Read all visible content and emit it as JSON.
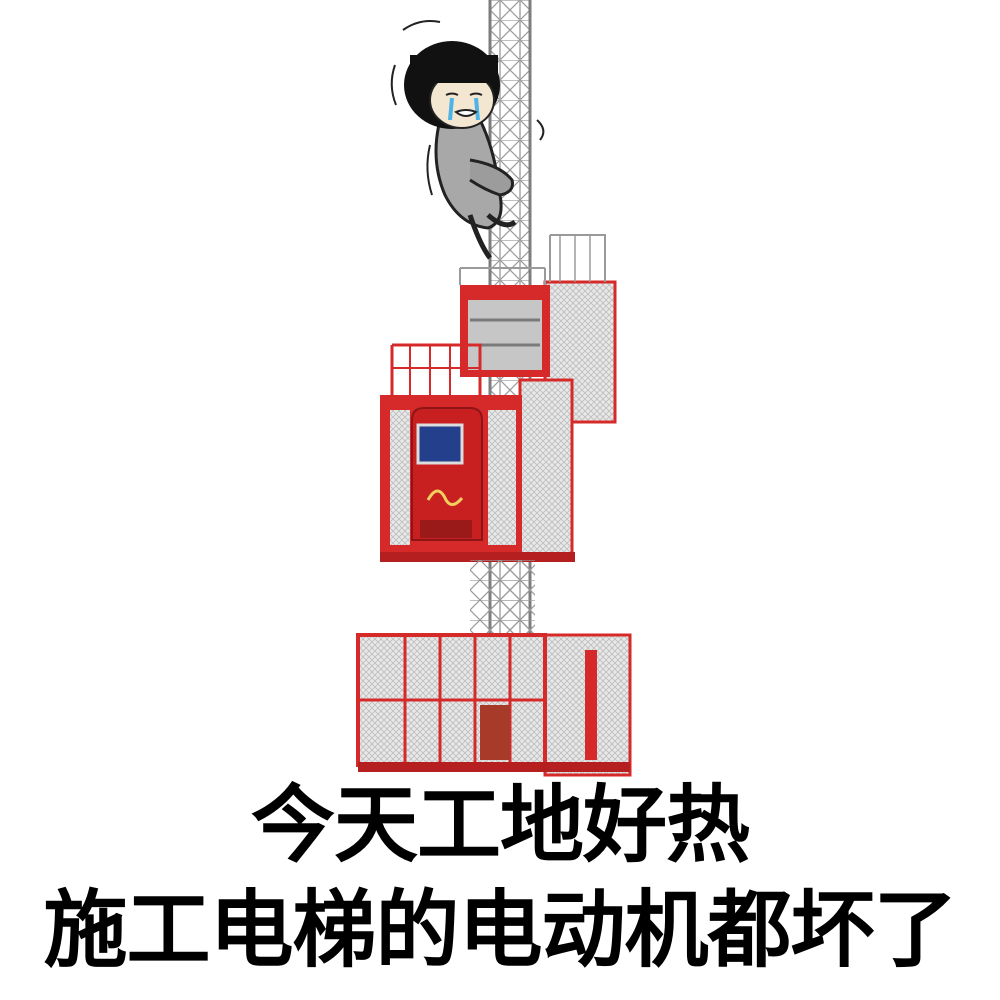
{
  "caption": {
    "line1": "今天工地好热",
    "line2": "施工电梯的电动机都坏了"
  },
  "colors": {
    "hoist_red": "#d62a2a",
    "mesh_grey": "#c9c9c9",
    "mast_grey": "#8e8e8e",
    "caption_text": "#000000",
    "background": "#ffffff"
  },
  "icons": {
    "character": "crying-mushroom-head-character",
    "elevator": "construction-hoist"
  }
}
